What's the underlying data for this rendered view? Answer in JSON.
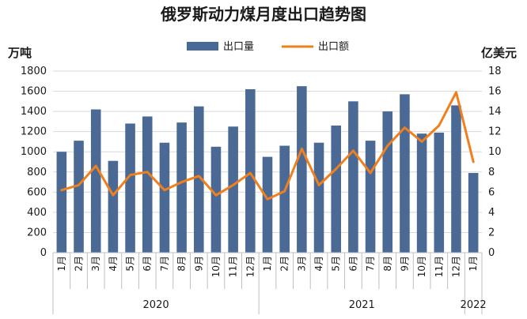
{
  "chart_data": {
    "type": "bar",
    "title": "俄罗斯动力煤月度出口趋势图",
    "left_axis_unit": "万吨",
    "right_axis_unit": "亿美元",
    "left_ylim": [
      0,
      1800
    ],
    "left_ticks": [
      0,
      200,
      400,
      600,
      800,
      1000,
      1200,
      1400,
      1600,
      1800
    ],
    "right_ylim": [
      0,
      18
    ],
    "right_ticks": [
      0,
      2,
      4,
      6,
      8,
      10,
      12,
      14,
      16,
      18
    ],
    "categories": [
      "1月",
      "2月",
      "3月",
      "4月",
      "5月",
      "6月",
      "7月",
      "8月",
      "9月",
      "10月",
      "11月",
      "12月",
      "1月",
      "2月",
      "3月",
      "4月",
      "5月",
      "6月",
      "7月",
      "8月",
      "9月",
      "10月",
      "11月",
      "12月",
      "1月"
    ],
    "year_groups": [
      {
        "label": "2020",
        "count": 12
      },
      {
        "label": "2021",
        "count": 12
      },
      {
        "label": "2022",
        "count": 1
      }
    ],
    "series": [
      {
        "name": "出口量",
        "type": "bar",
        "axis": "left",
        "color": "#4a6a95",
        "values": [
          1000,
          1110,
          1420,
          910,
          1280,
          1350,
          1090,
          1290,
          1450,
          1050,
          1250,
          1620,
          950,
          1060,
          1650,
          1090,
          1260,
          1500,
          1110,
          1400,
          1570,
          1180,
          1190,
          1460,
          790
        ]
      },
      {
        "name": "出口额",
        "type": "line",
        "axis": "right",
        "color": "#f07f1d",
        "values": [
          6.2,
          6.7,
          8.6,
          5.7,
          7.7,
          8.0,
          6.2,
          7.0,
          7.6,
          5.7,
          6.7,
          7.9,
          5.3,
          6.1,
          10.3,
          6.7,
          8.3,
          10.1,
          7.9,
          10.6,
          12.4,
          11.0,
          12.6,
          15.9,
          9.0
        ]
      }
    ],
    "legend_position": "top-center",
    "grid": true
  }
}
